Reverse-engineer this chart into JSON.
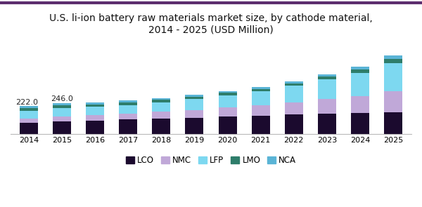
{
  "title": "U.S. li-ion battery raw materials market size, by cathode material,\n2014 - 2025 (USD Million)",
  "years": [
    2014,
    2015,
    2016,
    2017,
    2018,
    2019,
    2020,
    2021,
    2022,
    2023,
    2024,
    2025
  ],
  "labels": [
    "LCO",
    "NMC",
    "LFP",
    "LMO",
    "NCA"
  ],
  "colors": [
    "#1b0a2e",
    "#c0a8d8",
    "#7dd8f0",
    "#2e7d6a",
    "#5ab4d6"
  ],
  "data": {
    "LCO": [
      90,
      100,
      108,
      115,
      122,
      130,
      138,
      145,
      155,
      162,
      168,
      175
    ],
    "NMC": [
      32,
      38,
      42,
      48,
      55,
      62,
      72,
      82,
      98,
      115,
      135,
      165
    ],
    "LFP": [
      60,
      68,
      65,
      68,
      75,
      85,
      98,
      112,
      130,
      155,
      180,
      220
    ],
    "LMO": [
      22,
      24,
      20,
      20,
      20,
      20,
      18,
      18,
      20,
      22,
      28,
      35
    ],
    "NCA": [
      18,
      16,
      14,
      14,
      14,
      14,
      14,
      14,
      16,
      18,
      22,
      26
    ]
  },
  "bar_width": 0.55,
  "annotation_2014": "222.0",
  "annotation_2015": "246.0",
  "background_color": "#ffffff",
  "title_fontsize": 10,
  "legend_fontsize": 8.5,
  "tick_fontsize": 8
}
